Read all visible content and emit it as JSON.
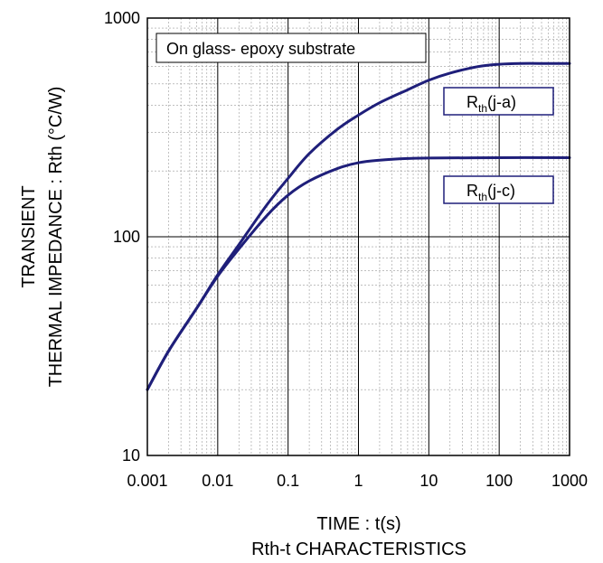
{
  "chart_data": {
    "type": "line",
    "title": "",
    "subtitle": "Rth-t CHARACTERISTICS",
    "xlabel": "TIME : t(s)",
    "ylabel_line1": "TRANSIENT",
    "ylabel_line2": "THERMAL IMPEDANCE : Rth (°C/W)",
    "xscale": "log",
    "yscale": "log",
    "xlim": [
      0.001,
      1000
    ],
    "ylim": [
      10,
      1000
    ],
    "xticks": [
      0.001,
      0.01,
      0.1,
      1,
      10,
      100,
      1000
    ],
    "xtick_labels": [
      "0.001",
      "0.01",
      "0.1",
      "1",
      "10",
      "100",
      "1000"
    ],
    "yticks": [
      10,
      100,
      1000
    ],
    "ytick_labels": [
      "10",
      "100",
      "1000"
    ],
    "grid": true,
    "annotation": "On glass- epoxy substrate",
    "series": [
      {
        "label_main": "R",
        "label_sub": "th",
        "label_suffix": "(j-a)",
        "color": "#1f1f7a",
        "x": [
          0.001,
          0.002,
          0.005,
          0.01,
          0.02,
          0.05,
          0.1,
          0.2,
          0.5,
          1,
          2,
          5,
          10,
          20,
          50,
          100,
          200,
          500,
          1000
        ],
        "y": [
          20,
          30,
          47,
          67,
          92,
          140,
          185,
          240,
          310,
          360,
          410,
          470,
          520,
          560,
          600,
          615,
          620,
          620,
          620
        ]
      },
      {
        "label_main": "R",
        "label_sub": "th",
        "label_suffix": "(j-c)",
        "color": "#1f1f7a",
        "x": [
          0.001,
          0.002,
          0.005,
          0.01,
          0.02,
          0.05,
          0.1,
          0.2,
          0.5,
          1,
          2,
          5,
          10,
          100,
          1000
        ],
        "y": [
          20,
          30,
          47,
          66,
          88,
          125,
          155,
          180,
          205,
          218,
          224,
          228,
          229,
          230,
          230
        ]
      }
    ]
  }
}
